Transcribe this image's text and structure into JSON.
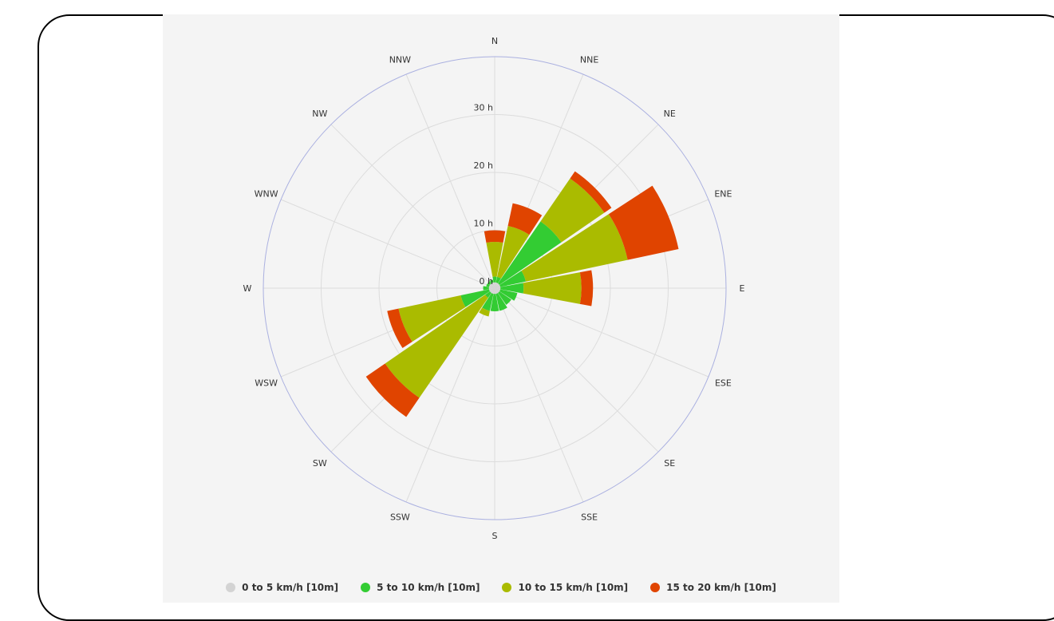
{
  "chart_data": {
    "type": "windrose",
    "title": "",
    "directions": [
      "N",
      "NNE",
      "NE",
      "ENE",
      "E",
      "ESE",
      "SE",
      "SSE",
      "S",
      "SSW",
      "SW",
      "WSW",
      "W",
      "WNW",
      "NW",
      "NNW"
    ],
    "radial_ticks": [
      "0 h",
      "10 h",
      "20 h",
      "30 h"
    ],
    "rmax": 40,
    "series": [
      {
        "name": "0 to 5 km/h [10m]",
        "color": "#d3d3d3",
        "values": [
          1.0,
          1.0,
          1.0,
          1.0,
          1.0,
          1.0,
          1.0,
          1.0,
          1.0,
          1.0,
          1.0,
          1.0,
          1.0,
          1.0,
          1.0,
          1.0
        ]
      },
      {
        "name": "5 to 10 km/h [10m]",
        "color": "#33cc33",
        "values": [
          1.0,
          1.0,
          13.0,
          4.5,
          4.0,
          3.0,
          2.5,
          3.0,
          3.0,
          3.0,
          1.0,
          5.0,
          1.0,
          0.5,
          0.5,
          0.5
        ]
      },
      {
        "name": "10 to 15 km/h [10m]",
        "color": "#aabb00",
        "values": [
          6.0,
          9.0,
          9.0,
          18.0,
          10.0,
          0.0,
          0.0,
          0.0,
          0.0,
          1.0,
          21.0,
          11.0,
          0.0,
          0.0,
          0.0,
          0.0
        ]
      },
      {
        "name": "15 to 20 km/h [10m]",
        "color": "#e04400",
        "values": [
          2.0,
          4.0,
          1.5,
          9.0,
          2.0,
          0.0,
          0.0,
          0.0,
          0.0,
          0.0,
          4.0,
          2.0,
          0.0,
          0.0,
          0.0,
          0.0
        ]
      }
    ],
    "legend_position": "bottom",
    "grid": true
  }
}
